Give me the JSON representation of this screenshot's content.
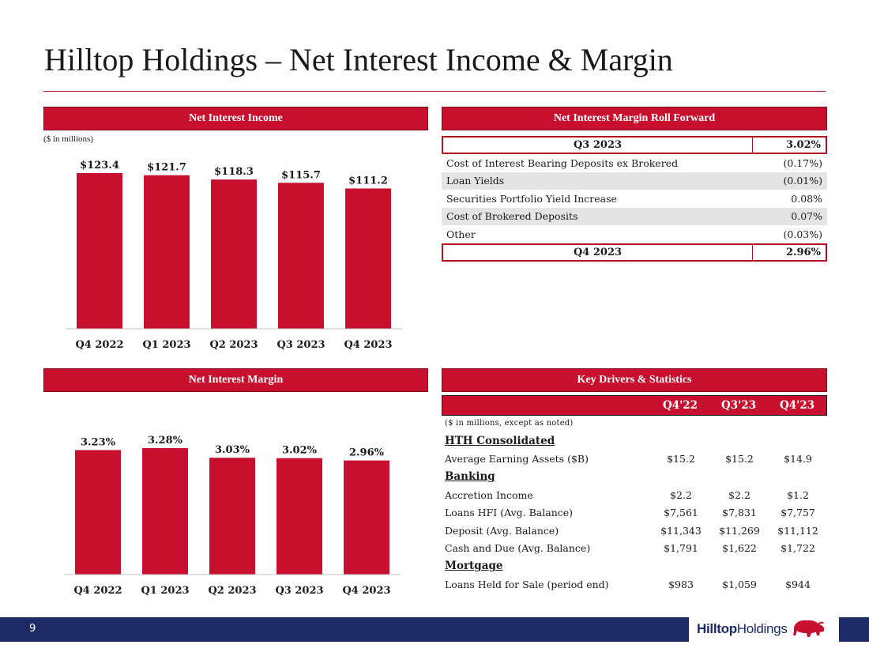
{
  "page": {
    "title": "Hilltop Holdings – Net Interest Income & Margin",
    "page_number": "9"
  },
  "colors": {
    "accent_red": "#c8102e",
    "navy": "#1c2b66",
    "row_shade": "#e4e4e4"
  },
  "nii_panel": {
    "header": "Net Interest Income",
    "units": "($ in millions)"
  },
  "nim_panel": {
    "header": "Net Interest Margin"
  },
  "chart_data": [
    {
      "type": "bar",
      "title": "Net Interest Income",
      "units": "($ in millions)",
      "categories": [
        "Q4 2022",
        "Q1 2023",
        "Q2 2023",
        "Q3 2023",
        "Q4 2023"
      ],
      "values": [
        123.4,
        121.7,
        118.3,
        115.7,
        111.2
      ],
      "labels": [
        "$123.4",
        "$121.7",
        "$118.3",
        "$115.7",
        "$111.2"
      ],
      "ylim": [
        0,
        123.4
      ],
      "color": "#c8102e",
      "grid": false
    },
    {
      "type": "bar",
      "title": "Net Interest Margin",
      "categories": [
        "Q4 2022",
        "Q1 2023",
        "Q2 2023",
        "Q3 2023",
        "Q4 2023"
      ],
      "values": [
        3.23,
        3.28,
        3.03,
        3.02,
        2.96
      ],
      "labels": [
        "3.23%",
        "3.28%",
        "3.03%",
        "3.02%",
        "2.96%"
      ],
      "ylim": [
        0,
        3.28
      ],
      "color": "#c8102e",
      "grid": false
    }
  ],
  "roll_forward": {
    "header": "Net Interest Margin Roll Forward",
    "start": {
      "label": "Q3 2023",
      "value": "3.02%"
    },
    "rows": [
      {
        "label": "Cost of Interest Bearing Deposits ex Brokered",
        "value": "(0.17%)"
      },
      {
        "label": "Loan Yields",
        "value": "(0.01%)"
      },
      {
        "label": "Securities Portfolio Yield Increase",
        "value": "0.08%"
      },
      {
        "label": "Cost of Brokered Deposits",
        "value": "0.07%"
      },
      {
        "label": "Other",
        "value": "(0.03%)"
      }
    ],
    "end": {
      "label": "Q4 2023",
      "value": "2.96%"
    }
  },
  "key_drivers": {
    "header": "Key Drivers & Statistics",
    "columns": [
      "Q4'22",
      "Q3'23",
      "Q4'23"
    ],
    "note": "($ in millions, except as noted)",
    "rows": [
      {
        "label": "HTH Consolidated",
        "group": true,
        "values": [
          "",
          "",
          ""
        ]
      },
      {
        "label": "Average Earning Assets ($B)",
        "group": false,
        "values": [
          "$15.2",
          "$15.2",
          "$14.9"
        ]
      },
      {
        "label": "Banking",
        "group": true,
        "values": [
          "",
          "",
          ""
        ]
      },
      {
        "label": "Accretion Income",
        "group": false,
        "values": [
          "$2.2",
          "$2.2",
          "$1.2"
        ]
      },
      {
        "label": "Loans HFI (Avg. Balance)",
        "group": false,
        "values": [
          "$7,561",
          "$7,831",
          "$7,757"
        ]
      },
      {
        "label": "Deposit (Avg. Balance)",
        "group": false,
        "values": [
          "$11,343",
          "$11,269",
          "$11,112"
        ]
      },
      {
        "label": "Cash and Due (Avg. Balance)",
        "group": false,
        "values": [
          "$1,791",
          "$1,622",
          "$1,722"
        ]
      },
      {
        "label": "Mortgage",
        "group": true,
        "values": [
          "",
          "",
          ""
        ]
      },
      {
        "label": "Loans Held for Sale (period end)",
        "group": false,
        "values": [
          "$983",
          "$1,059",
          "$944"
        ]
      }
    ]
  },
  "footer": {
    "logo_bold": "Hilltop",
    "logo_light": "Holdings",
    "logo_icon": "bison-icon"
  }
}
